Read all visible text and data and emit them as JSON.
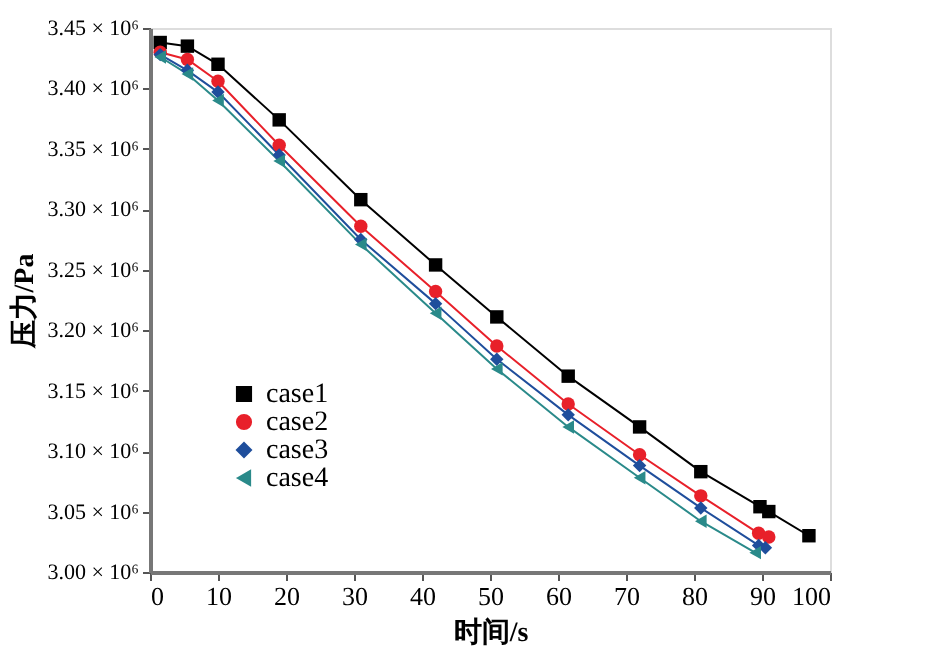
{
  "chart_data": {
    "type": "line",
    "xlabel": "时间/s",
    "ylabel": "压力/Pa",
    "xlim": [
      0,
      100
    ],
    "xticks": [
      0,
      10,
      20,
      30,
      40,
      50,
      60,
      70,
      80,
      90,
      100
    ],
    "ylim": [
      3000000,
      3450000
    ],
    "yticks": [
      {
        "value": 3000000,
        "label": "3.00 × 10⁶"
      },
      {
        "value": 3050000,
        "label": "3.05 × 10⁶"
      },
      {
        "value": 3100000,
        "label": "3.10 × 10⁶"
      },
      {
        "value": 3150000,
        "label": "3.15 × 10⁶"
      },
      {
        "value": 3200000,
        "label": "3.20 × 10⁶"
      },
      {
        "value": 3250000,
        "label": "3.25 × 10⁶"
      },
      {
        "value": 3300000,
        "label": "3.30 × 10⁶"
      },
      {
        "value": 3350000,
        "label": "3.35 × 10⁶"
      },
      {
        "value": 3400000,
        "label": "3.40 × 10⁶"
      },
      {
        "value": 3450000,
        "label": "3.45 × 10⁶"
      }
    ],
    "grid": false,
    "legend": "bottom left",
    "line_style": "solid",
    "series": [
      {
        "name": "case1",
        "color": "#000000",
        "marker": "square",
        "x": [
          1.5,
          5.5,
          10,
          19,
          31,
          42,
          51,
          61.5,
          72,
          81,
          89.7,
          91,
          96.9
        ],
        "values": [
          3438000,
          3435000,
          3420000,
          3374000,
          3308000,
          3254000,
          3211000,
          3162000,
          3120000,
          3083000,
          3054000,
          3050000,
          3030000
        ]
      },
      {
        "name": "case2",
        "color": "#e8202a",
        "marker": "circle",
        "x": [
          1.5,
          5.5,
          10,
          19,
          31,
          42,
          51,
          61.5,
          72,
          81,
          89.5,
          91
        ],
        "values": [
          3430000,
          3424000,
          3406000,
          3353000,
          3286000,
          3232000,
          3187000,
          3139000,
          3097000,
          3063000,
          3032000,
          3029000
        ]
      },
      {
        "name": "case3",
        "color": "#1f4e9c",
        "marker": "diamond",
        "x": [
          1.5,
          5.5,
          10,
          19,
          31,
          42,
          51,
          61.5,
          72,
          81,
          89.5,
          90.5
        ],
        "values": [
          3428000,
          3415000,
          3397000,
          3345000,
          3275000,
          3222000,
          3176000,
          3130000,
          3088000,
          3053000,
          3022000,
          3020000
        ]
      },
      {
        "name": "case4",
        "color": "#2a8a8a",
        "marker": "triangle",
        "x": [
          1.5,
          5.5,
          10,
          19,
          31,
          42,
          51,
          61.5,
          72,
          81,
          89
        ],
        "values": [
          3426000,
          3412000,
          3390000,
          3340000,
          3271000,
          3214000,
          3168000,
          3120000,
          3078000,
          3042000,
          3016000
        ]
      }
    ]
  }
}
